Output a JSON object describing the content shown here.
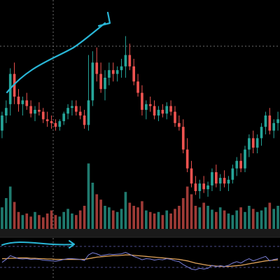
{
  "theme": {
    "background": "#000000",
    "bull_color": "#26a69a",
    "bear_color": "#ef5350",
    "bull_volume_color": "#1f7a6e",
    "bear_volume_color": "#9e3a36",
    "annotation_color": "#29b6d6",
    "rsi_line_color": "#7b7fd9",
    "rsi_ma_color": "#e0a35a",
    "crosshair_color": "#6b6b6b"
  },
  "chart_data": {
    "type": "candlestick",
    "title": "",
    "xlabel": "",
    "ylabel": "",
    "grid": false,
    "price_range": [
      0,
      100
    ],
    "volume_range": [
      0,
      100
    ],
    "rsi_range": [
      0,
      100
    ],
    "candles": [
      {
        "o": 42,
        "h": 52,
        "l": 38,
        "c": 50
      },
      {
        "o": 50,
        "h": 58,
        "l": 46,
        "c": 54
      },
      {
        "o": 56,
        "h": 75,
        "l": 50,
        "c": 72
      },
      {
        "o": 72,
        "h": 78,
        "l": 56,
        "c": 60
      },
      {
        "o": 60,
        "h": 64,
        "l": 52,
        "c": 56
      },
      {
        "o": 56,
        "h": 60,
        "l": 50,
        "c": 58
      },
      {
        "o": 58,
        "h": 62,
        "l": 53,
        "c": 55
      },
      {
        "o": 55,
        "h": 58,
        "l": 49,
        "c": 51
      },
      {
        "o": 51,
        "h": 55,
        "l": 47,
        "c": 53
      },
      {
        "o": 53,
        "h": 57,
        "l": 50,
        "c": 52
      },
      {
        "o": 52,
        "h": 54,
        "l": 46,
        "c": 48
      },
      {
        "o": 48,
        "h": 52,
        "l": 44,
        "c": 47
      },
      {
        "o": 47,
        "h": 50,
        "l": 43,
        "c": 46
      },
      {
        "o": 46,
        "h": 48,
        "l": 42,
        "c": 44
      },
      {
        "o": 44,
        "h": 48,
        "l": 42,
        "c": 47
      },
      {
        "o": 47,
        "h": 52,
        "l": 45,
        "c": 51
      },
      {
        "o": 51,
        "h": 56,
        "l": 48,
        "c": 54
      },
      {
        "o": 54,
        "h": 58,
        "l": 50,
        "c": 55
      },
      {
        "o": 55,
        "h": 58,
        "l": 50,
        "c": 52
      },
      {
        "o": 52,
        "h": 55,
        "l": 48,
        "c": 50
      },
      {
        "o": 50,
        "h": 53,
        "l": 43,
        "c": 45
      },
      {
        "o": 45,
        "h": 82,
        "l": 42,
        "c": 58
      },
      {
        "o": 58,
        "h": 84,
        "l": 55,
        "c": 78
      },
      {
        "o": 78,
        "h": 86,
        "l": 68,
        "c": 72
      },
      {
        "o": 72,
        "h": 78,
        "l": 62,
        "c": 64
      },
      {
        "o": 64,
        "h": 74,
        "l": 58,
        "c": 70
      },
      {
        "o": 70,
        "h": 78,
        "l": 66,
        "c": 74
      },
      {
        "o": 74,
        "h": 78,
        "l": 68,
        "c": 72
      },
      {
        "o": 72,
        "h": 76,
        "l": 68,
        "c": 74
      },
      {
        "o": 74,
        "h": 80,
        "l": 70,
        "c": 76
      },
      {
        "o": 76,
        "h": 92,
        "l": 70,
        "c": 82
      },
      {
        "o": 82,
        "h": 88,
        "l": 74,
        "c": 76
      },
      {
        "o": 76,
        "h": 80,
        "l": 66,
        "c": 68
      },
      {
        "o": 68,
        "h": 72,
        "l": 60,
        "c": 62
      },
      {
        "o": 62,
        "h": 66,
        "l": 50,
        "c": 53
      },
      {
        "o": 53,
        "h": 58,
        "l": 48,
        "c": 56
      },
      {
        "o": 56,
        "h": 60,
        "l": 52,
        "c": 55
      },
      {
        "o": 55,
        "h": 58,
        "l": 48,
        "c": 50
      },
      {
        "o": 50,
        "h": 55,
        "l": 47,
        "c": 53
      },
      {
        "o": 53,
        "h": 56,
        "l": 49,
        "c": 51
      },
      {
        "o": 51,
        "h": 57,
        "l": 48,
        "c": 55
      },
      {
        "o": 55,
        "h": 58,
        "l": 50,
        "c": 52
      },
      {
        "o": 52,
        "h": 55,
        "l": 44,
        "c": 46
      },
      {
        "o": 46,
        "h": 50,
        "l": 42,
        "c": 44
      },
      {
        "o": 44,
        "h": 48,
        "l": 30,
        "c": 32
      },
      {
        "o": 32,
        "h": 38,
        "l": 20,
        "c": 22
      },
      {
        "o": 22,
        "h": 26,
        "l": 12,
        "c": 14
      },
      {
        "o": 14,
        "h": 18,
        "l": 8,
        "c": 10
      },
      {
        "o": 10,
        "h": 16,
        "l": 6,
        "c": 14
      },
      {
        "o": 14,
        "h": 18,
        "l": 9,
        "c": 11
      },
      {
        "o": 11,
        "h": 15,
        "l": 7,
        "c": 13
      },
      {
        "o": 13,
        "h": 22,
        "l": 10,
        "c": 20
      },
      {
        "o": 20,
        "h": 24,
        "l": 12,
        "c": 14
      },
      {
        "o": 14,
        "h": 19,
        "l": 10,
        "c": 17
      },
      {
        "o": 17,
        "h": 21,
        "l": 12,
        "c": 14
      },
      {
        "o": 14,
        "h": 18,
        "l": 10,
        "c": 16
      },
      {
        "o": 16,
        "h": 24,
        "l": 14,
        "c": 22
      },
      {
        "o": 22,
        "h": 28,
        "l": 18,
        "c": 26
      },
      {
        "o": 26,
        "h": 30,
        "l": 20,
        "c": 22
      },
      {
        "o": 22,
        "h": 34,
        "l": 20,
        "c": 32
      },
      {
        "o": 32,
        "h": 40,
        "l": 28,
        "c": 38
      },
      {
        "o": 38,
        "h": 42,
        "l": 30,
        "c": 33
      },
      {
        "o": 33,
        "h": 40,
        "l": 30,
        "c": 38
      },
      {
        "o": 38,
        "h": 46,
        "l": 34,
        "c": 44
      },
      {
        "o": 44,
        "h": 52,
        "l": 40,
        "c": 50
      },
      {
        "o": 50,
        "h": 54,
        "l": 40,
        "c": 42
      },
      {
        "o": 42,
        "h": 48,
        "l": 38,
        "c": 46
      },
      {
        "o": 46,
        "h": 52,
        "l": 42,
        "c": 48
      }
    ],
    "volume": [
      28,
      40,
      55,
      35,
      22,
      18,
      20,
      16,
      22,
      18,
      15,
      20,
      24,
      18,
      16,
      22,
      26,
      20,
      18,
      24,
      30,
      85,
      60,
      45,
      38,
      30,
      28,
      24,
      22,
      26,
      48,
      34,
      30,
      28,
      36,
      24,
      22,
      20,
      22,
      18,
      24,
      20,
      26,
      30,
      40,
      55,
      45,
      30,
      28,
      34,
      30,
      25,
      22,
      28,
      24,
      20,
      18,
      24,
      28,
      22,
      30,
      26,
      22,
      24,
      28,
      34,
      26,
      30
    ],
    "rsi": [
      40,
      48,
      58,
      54,
      50,
      49,
      50,
      48,
      49,
      48,
      46,
      45,
      44,
      43,
      45,
      48,
      50,
      50,
      49,
      48,
      45,
      60,
      66,
      63,
      58,
      60,
      62,
      61,
      62,
      63,
      67,
      62,
      56,
      52,
      47,
      50,
      49,
      46,
      48,
      47,
      50,
      48,
      44,
      42,
      34,
      28,
      22,
      20,
      24,
      22,
      24,
      32,
      28,
      31,
      29,
      32,
      38,
      42,
      38,
      45,
      50,
      44,
      48,
      52,
      56,
      44,
      48,
      50
    ],
    "rsi_ma": [
      50,
      50,
      51,
      51,
      52,
      52,
      52,
      51,
      51,
      50,
      50,
      49,
      49,
      48,
      48,
      48,
      48,
      48,
      48,
      48,
      48,
      50,
      52,
      54,
      55,
      56,
      57,
      58,
      58,
      59,
      60,
      60,
      59,
      58,
      57,
      56,
      55,
      54,
      53,
      52,
      51,
      50,
      49,
      48,
      46,
      44,
      41,
      38,
      36,
      34,
      32,
      31,
      30,
      29,
      29,
      29,
      30,
      31,
      32,
      34,
      36,
      38,
      40,
      42,
      44,
      45,
      46,
      47
    ]
  }
}
